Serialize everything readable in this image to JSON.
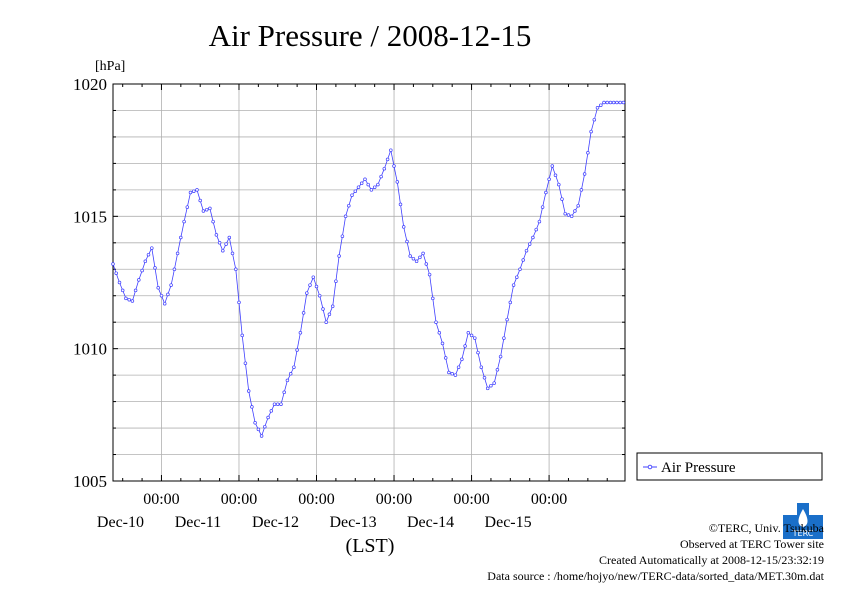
{
  "chart_data": {
    "type": "line",
    "title": "Air Pressure / 2008-12-15",
    "ylabel": "[hPa]",
    "xlabel": "(LST)",
    "ylim": [
      1005,
      1020
    ],
    "y_ticks": [
      "1005",
      "1010",
      "1015",
      "1020"
    ],
    "x_tick_labels": [
      {
        "time": "00:00",
        "date": "Dec-10"
      },
      {
        "time": "00:00",
        "date": "Dec-11"
      },
      {
        "time": "00:00",
        "date": "Dec-12"
      },
      {
        "time": "00:00",
        "date": "Dec-13"
      },
      {
        "time": "00:00",
        "date": "Dec-14"
      },
      {
        "time": "00:00",
        "date": "Dec-15"
      }
    ],
    "x_range": [
      "2008-12-09 09:00",
      "2008-12-15 23:30"
    ],
    "grid": true,
    "legend_position": "right",
    "series": [
      {
        "name": "Air Pressure",
        "color": "#4040ff",
        "x_hours_since_start": [
          0,
          2,
          4,
          6,
          8,
          10,
          12,
          14,
          16,
          18,
          20,
          22,
          24,
          26,
          28,
          30,
          32,
          34,
          36,
          38,
          40,
          42,
          44,
          46,
          48,
          50,
          52,
          54,
          56,
          58,
          60,
          62,
          64,
          66,
          68,
          70,
          72,
          74,
          76,
          78,
          80,
          82,
          84,
          86,
          88,
          90,
          92,
          94,
          96,
          98,
          100,
          102,
          104,
          106,
          108,
          110,
          112,
          114,
          116,
          118,
          120,
          122,
          124,
          126,
          128,
          130,
          132,
          134,
          136,
          138,
          140,
          142,
          144,
          146,
          148,
          150,
          152,
          154,
          156,
          158
        ],
        "values": [
          1013.2,
          1012.5,
          1011.9,
          1011.8,
          1012.6,
          1013.3,
          1013.8,
          1012.3,
          1011.7,
          1012.4,
          1013.6,
          1014.8,
          1015.9,
          1016.0,
          1015.2,
          1015.3,
          1014.3,
          1013.7,
          1014.2,
          1013.0,
          1010.5,
          1008.4,
          1007.2,
          1006.7,
          1007.4,
          1007.9,
          1007.9,
          1008.8,
          1009.3,
          1010.6,
          1012.1,
          1012.7,
          1012.0,
          1011.0,
          1011.6,
          1013.5,
          1015.0,
          1015.8,
          1016.1,
          1016.4,
          1016.0,
          1016.2,
          1016.8,
          1017.5,
          1016.3,
          1014.6,
          1013.5,
          1013.3,
          1013.6,
          1012.8,
          1011.0,
          1010.2,
          1009.1,
          1009.0,
          1009.6,
          1010.6,
          1010.4,
          1009.3,
          1008.5,
          1008.7,
          1009.7,
          1011.1,
          1012.4,
          1013.0,
          1013.7,
          1014.2,
          1014.8,
          1015.9,
          1016.9,
          1016.2,
          1015.1,
          1015.0,
          1015.4,
          1016.6,
          1018.2,
          1019.1,
          1019.3,
          1019.3,
          1019.3,
          1019.3
        ]
      }
    ]
  },
  "footer": {
    "copyright": "©TERC, Univ. Tsukuba",
    "observed": "Observed at TERC Tower site",
    "created": "Created Automatically at 2008-12-15/23:32:19",
    "source": "Data source : /home/hojyo/new/TERC-data/sorted_data/MET.30m.dat"
  },
  "logo": {
    "text": "TERC",
    "color": "#1a6fc9"
  }
}
